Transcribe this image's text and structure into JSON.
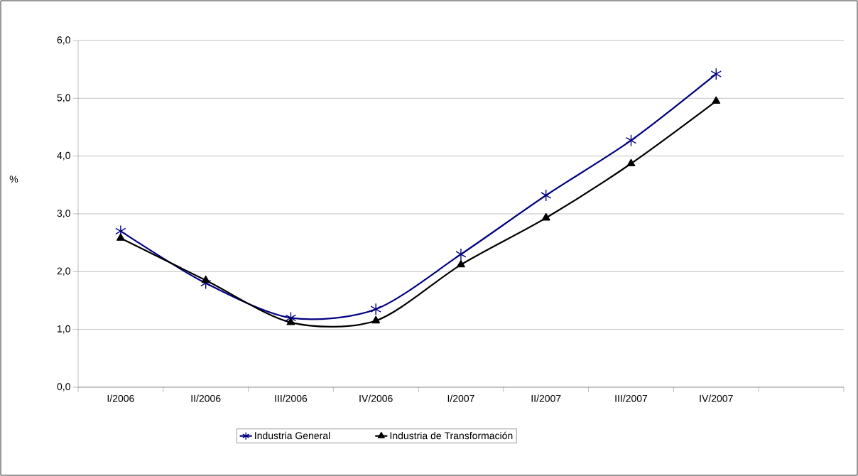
{
  "chart_data": {
    "type": "line",
    "ylabel": "%",
    "categories": [
      "I/2006",
      "II/2006",
      "III/2006",
      "IV/2006",
      "I/2007",
      "II/2007",
      "III/2007",
      "IV/2007"
    ],
    "series": [
      {
        "name": "Industria General",
        "color": "#000080",
        "marker": "cross",
        "values": [
          2.7,
          1.8,
          1.2,
          1.35,
          2.3,
          3.32,
          4.27,
          5.42
        ]
      },
      {
        "name": "Industria de Transformación",
        "color": "#000000",
        "marker": "triangle",
        "values": [
          2.58,
          1.85,
          1.12,
          1.15,
          2.12,
          2.93,
          3.87,
          4.95
        ]
      }
    ],
    "ylim": [
      0,
      6
    ],
    "yticks": [
      {
        "value": 0,
        "label": "0,0"
      },
      {
        "value": 1,
        "label": "1,0"
      },
      {
        "value": 2,
        "label": "2,0"
      },
      {
        "value": 3,
        "label": "3,0"
      },
      {
        "value": 4,
        "label": "4,0"
      },
      {
        "value": 5,
        "label": "5,0"
      },
      {
        "value": 6,
        "label": "6,0"
      }
    ],
    "grid": "y",
    "legend": "bottom",
    "line_style": "solid"
  }
}
